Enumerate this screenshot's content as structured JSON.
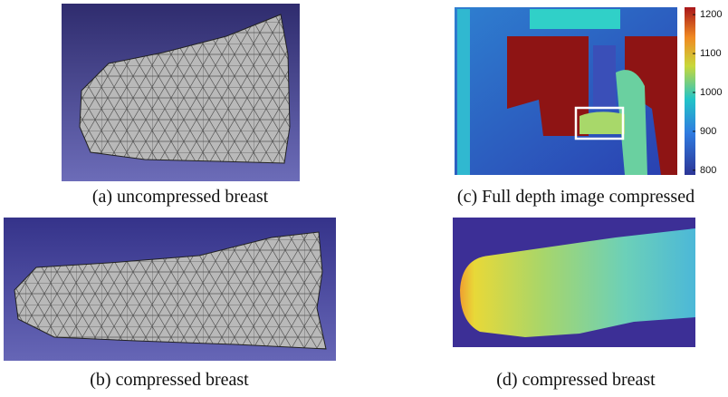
{
  "panels": [
    {
      "caption": "(a) uncompressed breast"
    },
    {
      "caption": "(b) compressed breast"
    },
    {
      "caption": "(c) Full depth image compressed"
    },
    {
      "caption": "(d) compressed breast"
    }
  ],
  "colorbar": {
    "ylim": [
      788,
      1219
    ],
    "yticks": [
      800,
      900,
      1000,
      1100,
      1200
    ]
  }
}
